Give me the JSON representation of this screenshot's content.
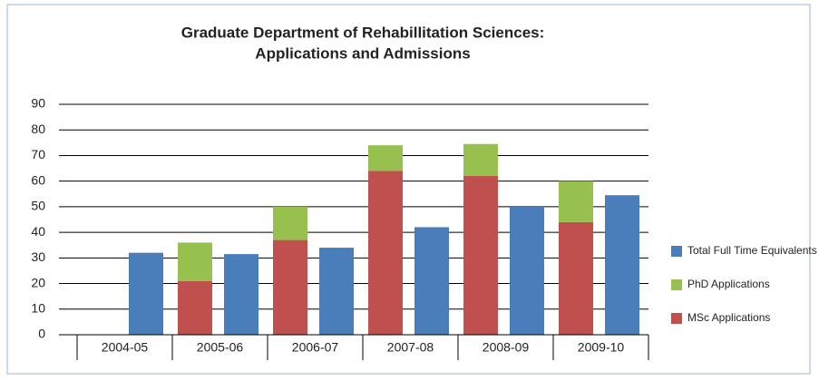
{
  "chart_data": {
    "type": "bar",
    "title": [
      "Graduate Department of Rehabillitation Sciences:",
      "Applications and Admissions"
    ],
    "categories": [
      "2004-05",
      "2005-06",
      "2006-07",
      "2007-08",
      "2008-09",
      "2009-10"
    ],
    "series": [
      {
        "name": "Total Full Time Equivalents",
        "color": "#4a7ebb",
        "values": [
          32,
          31.5,
          34,
          42,
          50,
          54.5
        ]
      },
      {
        "name": "PhD Applications",
        "color": "#98c04f",
        "values": [
          null,
          15,
          13,
          10,
          12.5,
          16
        ]
      },
      {
        "name": "MSc Applications",
        "color": "#c0504d",
        "values": [
          null,
          21,
          37,
          64,
          62,
          44
        ]
      }
    ],
    "ylim": [
      0,
      90
    ],
    "yticks": [
      0,
      10,
      20,
      30,
      40,
      50,
      60,
      70,
      80,
      90
    ],
    "grid": true,
    "legend": "right"
  }
}
